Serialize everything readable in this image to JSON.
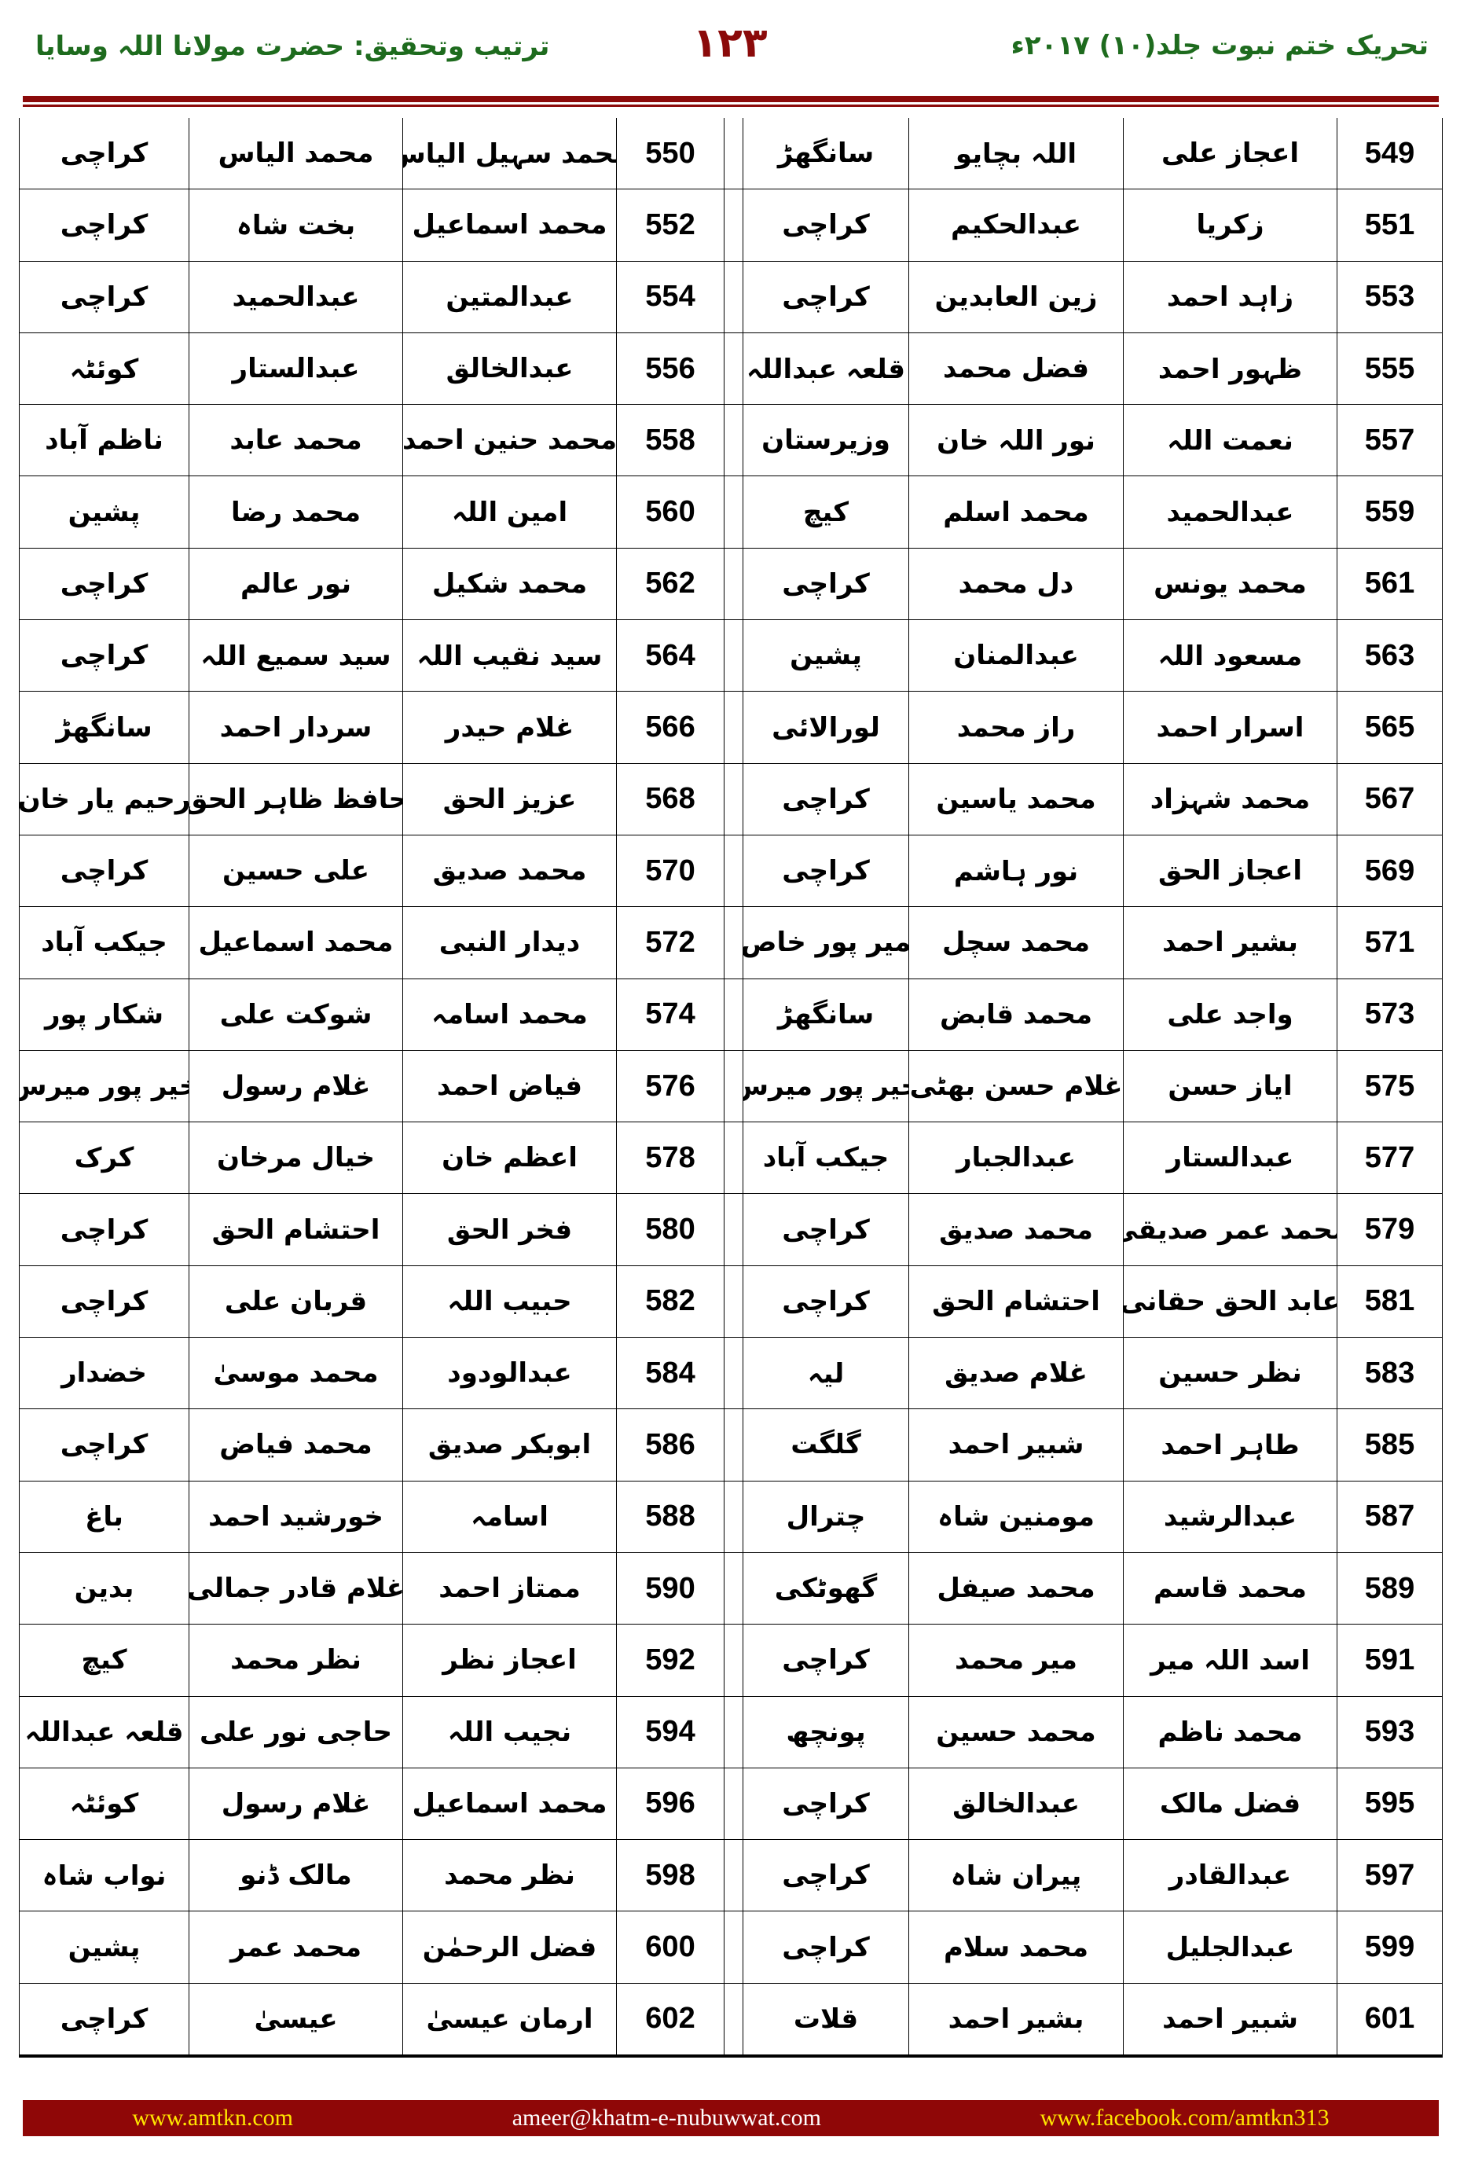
{
  "header": {
    "right_title": "تحریک ختم نبوت جلد(۱۰) ۲۰۱۷ء",
    "page_number": "۱۲۳",
    "left_title": "ترتیب وتحقیق: حضرت مولانا اللہ وسایا"
  },
  "colors": {
    "accent": "#8b0a0a",
    "header_text": "#1e6b1e",
    "footer_link": "#ffe600"
  },
  "rows": [
    [
      [
        "549",
        "اعجاز علی",
        "اللہ بچایو",
        "سانگھڑ"
      ],
      [
        "550",
        "محمد سہیل الیاس",
        "محمد الیاس",
        "کراچی"
      ]
    ],
    [
      [
        "551",
        "زکریا",
        "عبدالحکیم",
        "کراچی"
      ],
      [
        "552",
        "محمد اسماعیل",
        "بخت شاہ",
        "کراچی"
      ]
    ],
    [
      [
        "553",
        "زاہد احمد",
        "زین العابدین",
        "کراچی"
      ],
      [
        "554",
        "عبدالمتین",
        "عبدالحمید",
        "کراچی"
      ]
    ],
    [
      [
        "555",
        "ظہور احمد",
        "فضل محمد",
        "قلعہ عبداللہ"
      ],
      [
        "556",
        "عبدالخالق",
        "عبدالستار",
        "کوئٹہ"
      ]
    ],
    [
      [
        "557",
        "نعمت اللہ",
        "نور اللہ خان",
        "وزیرستان"
      ],
      [
        "558",
        "محمد حنین احمد",
        "محمد عابد",
        "ناظم آباد"
      ]
    ],
    [
      [
        "559",
        "عبدالحمید",
        "محمد اسلم",
        "کیچ"
      ],
      [
        "560",
        "امین اللہ",
        "محمد رضا",
        "پشین"
      ]
    ],
    [
      [
        "561",
        "محمد یونس",
        "دل محمد",
        "کراچی"
      ],
      [
        "562",
        "محمد شکیل",
        "نور عالم",
        "کراچی"
      ]
    ],
    [
      [
        "563",
        "مسعود اللہ",
        "عبدالمنان",
        "پشین"
      ],
      [
        "564",
        "سید نقیب اللہ",
        "سید سمیع اللہ",
        "کراچی"
      ]
    ],
    [
      [
        "565",
        "اسرار احمد",
        "راز محمد",
        "لورالائی"
      ],
      [
        "566",
        "غلام حیدر",
        "سردار احمد",
        "سانگھڑ"
      ]
    ],
    [
      [
        "567",
        "محمد شہزاد",
        "محمد یاسین",
        "کراچی"
      ],
      [
        "568",
        "عزیز الحق",
        "حافظ ظاہر الحق",
        "رحیم یار خان"
      ]
    ],
    [
      [
        "569",
        "اعجاز الحق",
        "نور ہاشم",
        "کراچی"
      ],
      [
        "570",
        "محمد صدیق",
        "علی حسین",
        "کراچی"
      ]
    ],
    [
      [
        "571",
        "بشیر احمد",
        "محمد سچل",
        "میر پور خاص"
      ],
      [
        "572",
        "دیدار النبی",
        "محمد اسماعیل",
        "جیکب آباد"
      ]
    ],
    [
      [
        "573",
        "واجد علی",
        "محمد قابض",
        "سانگھڑ"
      ],
      [
        "574",
        "محمد اسامہ",
        "شوکت علی",
        "شکار پور"
      ]
    ],
    [
      [
        "575",
        "ایاز حسن",
        "غلام حسن بھٹی",
        "خیر پور میرس"
      ],
      [
        "576",
        "فیاض احمد",
        "غلام رسول",
        "خیر پور میرس"
      ]
    ],
    [
      [
        "577",
        "عبدالستار",
        "عبدالجبار",
        "جیکب آباد"
      ],
      [
        "578",
        "اعظم خان",
        "خیال مرخان",
        "کرک"
      ]
    ],
    [
      [
        "579",
        "محمد عمر صدیقی",
        "محمد صدیق",
        "کراچی"
      ],
      [
        "580",
        "فخر الحق",
        "احتشام الحق",
        "کراچی"
      ]
    ],
    [
      [
        "581",
        "عابد الحق حقانی",
        "احتشام الحق",
        "کراچی"
      ],
      [
        "582",
        "حبیب اللہ",
        "قربان علی",
        "کراچی"
      ]
    ],
    [
      [
        "583",
        "نظر حسین",
        "غلام صدیق",
        "لیہ"
      ],
      [
        "584",
        "عبدالودود",
        "محمد موسیٰ",
        "خضدار"
      ]
    ],
    [
      [
        "585",
        "طاہر احمد",
        "شبیر احمد",
        "گلگت"
      ],
      [
        "586",
        "ابوبکر صدیق",
        "محمد فیاض",
        "کراچی"
      ]
    ],
    [
      [
        "587",
        "عبدالرشید",
        "مومنین شاہ",
        "چترال"
      ],
      [
        "588",
        "اسامہ",
        "خورشید احمد",
        "باغ"
      ]
    ],
    [
      [
        "589",
        "محمد قاسم",
        "محمد صیفل",
        "گھوٹکی"
      ],
      [
        "590",
        "ممتاز احمد",
        "غلام قادر جمالی",
        "بدین"
      ]
    ],
    [
      [
        "591",
        "اسد اللہ میر",
        "میر محمد",
        "کراچی"
      ],
      [
        "592",
        "اعجاز نظر",
        "نظر محمد",
        "کیچ"
      ]
    ],
    [
      [
        "593",
        "محمد ناظم",
        "محمد حسین",
        "پونچھ"
      ],
      [
        "594",
        "نجیب اللہ",
        "حاجی نور علی",
        "قلعہ عبداللہ"
      ]
    ],
    [
      [
        "595",
        "فضل مالک",
        "عبدالخالق",
        "کراچی"
      ],
      [
        "596",
        "محمد اسماعیل",
        "غلام رسول",
        "کوئٹہ"
      ]
    ],
    [
      [
        "597",
        "عبدالقادر",
        "پیران شاہ",
        "کراچی"
      ],
      [
        "598",
        "نظر محمد",
        "مالک ڈنو",
        "نواب شاہ"
      ]
    ],
    [
      [
        "599",
        "عبدالجلیل",
        "محمد سلام",
        "کراچی"
      ],
      [
        "600",
        "فضل الرحمٰن",
        "محمد عمر",
        "پشین"
      ]
    ],
    [
      [
        "601",
        "شبیر احمد",
        "بشیر احمد",
        "قلات"
      ],
      [
        "602",
        "ارمان عیسیٰ",
        "عیسیٰ",
        "کراچی"
      ]
    ]
  ],
  "footer": {
    "website": "www.amtkn.com",
    "email": "ameer@khatm-e-nubuwwat.com",
    "facebook": "www.facebook.com/amtkn313"
  }
}
